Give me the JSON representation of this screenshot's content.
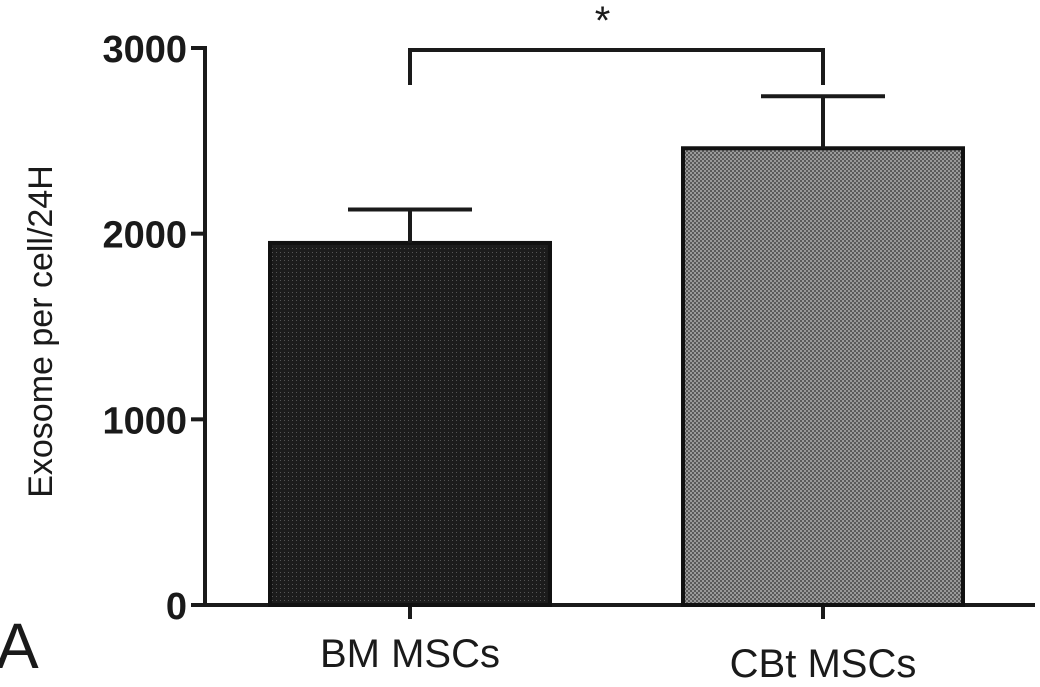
{
  "panel_label": "A",
  "colors": {
    "axis": "#1a1a1a",
    "bm_fill": "#1c1c1c",
    "cbt_fill": "#8a8a8a",
    "bar_edge": "#111111"
  },
  "chart_data": {
    "type": "bar",
    "title": "",
    "xlabel": "",
    "ylabel": "Exosome per cell/24H",
    "categories": [
      "BM MSCs",
      "CBt MSCs"
    ],
    "values": [
      1950,
      2460
    ],
    "errors": [
      180,
      280
    ],
    "ylim": [
      0,
      3000
    ],
    "yticks": [
      0,
      1000,
      2000,
      3000
    ],
    "yticklabels": [
      "0",
      "1000",
      "2000",
      "3000"
    ],
    "grid": false,
    "legend": "none",
    "significance": {
      "pair": [
        0,
        1
      ],
      "label": "*"
    }
  }
}
